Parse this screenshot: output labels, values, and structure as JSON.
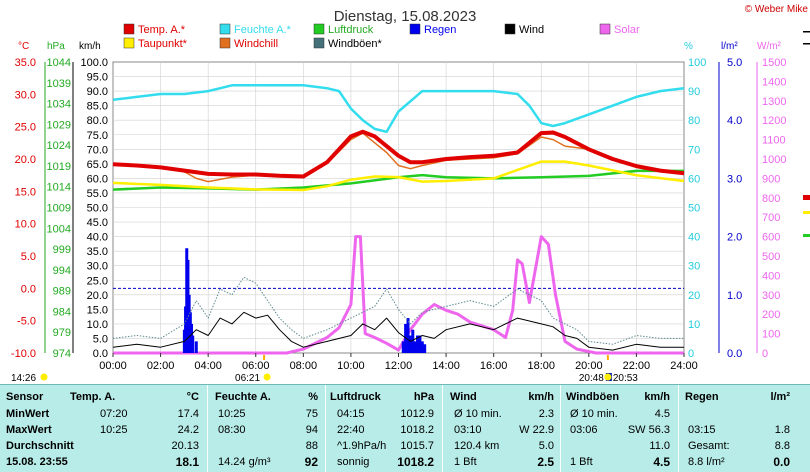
{
  "title": "Dienstag, 15.08.2023",
  "copyright": "© Weber Mike",
  "colors": {
    "temp": "#e00000",
    "dew": "#ffee00",
    "hum": "#33ddee",
    "windchill": "#e07020",
    "pressure": "#22cc22",
    "gust": "#44707a",
    "rain": "#0000ee",
    "wind": "#000000",
    "solar": "#ee66ee",
    "panel": "#b8ece8"
  },
  "axes": {
    "c_unit": "°C",
    "hpa_unit": "hPa",
    "kmh_unit": "km/h",
    "pct_unit": "%",
    "lm2_unit": "l/m²",
    "wm2_unit": "W/m²",
    "c_ticks": [
      "35.0",
      "30.0",
      "25.0",
      "20.0",
      "15.0",
      "10.0",
      "5.0",
      "0.0",
      "-5.0",
      "-10.0"
    ],
    "hpa_ticks": [
      "1044",
      "1039",
      "1034",
      "1029",
      "1024",
      "1019",
      "1014",
      "1009",
      "1004",
      "999",
      "994",
      "989",
      "984",
      "979",
      "974"
    ],
    "kmh_ticks": [
      "100.0",
      "95.0",
      "90.0",
      "85.0",
      "80.0",
      "75.0",
      "70.0",
      "65.0",
      "60.0",
      "55.0",
      "50.0",
      "45.0",
      "40.0",
      "35.0",
      "30.0",
      "25.0",
      "20.0",
      "15.0",
      "10.0",
      "5.0",
      "0.0"
    ],
    "pct_ticks": [
      "100",
      "90",
      "80",
      "70",
      "60",
      "50",
      "40",
      "30",
      "20",
      "10",
      "0"
    ],
    "lm2_ticks": [
      "5.0",
      "4.0",
      "3.0",
      "2.0",
      "1.0",
      "0.0"
    ],
    "wm2_ticks": [
      "1500",
      "1400",
      "1300",
      "1200",
      "1100",
      "1000",
      "900",
      "800",
      "700",
      "600",
      "500",
      "400",
      "300",
      "200",
      "100",
      "0"
    ],
    "x_ticks": [
      "00:00",
      "02:00",
      "04:00",
      "06:00",
      "08:00",
      "10:00",
      "12:00",
      "14:00",
      "16:00",
      "18:00",
      "20:00",
      "22:00",
      "24:00"
    ],
    "sunrise": "06:21",
    "sunset": "20:48",
    "moonrise": "14:26",
    "moonset": "20:53"
  },
  "legend": [
    {
      "label": "Temp. A.*",
      "color": "#e00000",
      "text_color": "#e00000"
    },
    {
      "label": "Feuchte A.*",
      "color": "#33ddee",
      "text_color": "#33ddee"
    },
    {
      "label": "Luftdruck",
      "color": "#22cc22",
      "text_color": "#22aa22"
    },
    {
      "label": "Regen",
      "color": "#0000ee",
      "text_color": "#0000ee"
    },
    {
      "label": "Wind",
      "color": "#000000",
      "text_color": "#000000"
    },
    {
      "label": "Solar",
      "color": "#ee66ee",
      "text_color": "#ee66ee"
    },
    {
      "label": "Taupunkt*",
      "color": "#ffee00",
      "text_color": "#e00000"
    },
    {
      "label": "Windchill",
      "color": "#e07020",
      "text_color": "#e00000"
    },
    {
      "label": "Windböen*",
      "color": "#44707a",
      "text_color": "#000000"
    }
  ],
  "chart_data": {
    "type": "line",
    "x_unit": "hour of day",
    "xlim": [
      0,
      24
    ],
    "series": [
      {
        "name": "Temp. A.*",
        "unit": "°C",
        "x": [
          0,
          1,
          2,
          3,
          4,
          5,
          6,
          7,
          8,
          9,
          9.5,
          10,
          10.5,
          11,
          11.5,
          12,
          12.5,
          13,
          14,
          15,
          16,
          17,
          17.5,
          18,
          18.5,
          19,
          20,
          21,
          22,
          23,
          24
        ],
        "y": [
          19.2,
          19.0,
          18.7,
          18.2,
          17.7,
          17.6,
          17.6,
          17.4,
          17.3,
          19.5,
          21.5,
          23.5,
          24.2,
          23.5,
          22.0,
          20.5,
          19.5,
          19.5,
          20.0,
          20.3,
          20.5,
          21.0,
          22.5,
          24.0,
          24.1,
          23.4,
          21.5,
          20.0,
          18.9,
          18.2,
          17.8
        ]
      },
      {
        "name": "Taupunkt*",
        "unit": "°C",
        "x": [
          0,
          2,
          4,
          6,
          8,
          9,
          10,
          11,
          12,
          13,
          14,
          16,
          18,
          19,
          20,
          22,
          24
        ],
        "y": [
          16.3,
          16.0,
          15.6,
          15.3,
          15.2,
          15.8,
          16.8,
          17.3,
          17.2,
          16.5,
          16.6,
          17.0,
          19.6,
          19.6,
          19.0,
          17.5,
          16.6
        ]
      },
      {
        "name": "Windchill",
        "unit": "°C",
        "x": [
          0,
          2,
          3,
          3.5,
          4,
          5,
          6,
          8,
          9,
          10,
          10.5,
          11,
          11.5,
          12,
          12.5,
          13,
          14,
          16,
          17,
          18,
          18.5,
          19,
          20,
          22,
          24
        ],
        "y": [
          19.2,
          18.7,
          18.0,
          17.0,
          16.5,
          17.2,
          17.5,
          17.3,
          19.3,
          23.0,
          24.0,
          22.5,
          21.0,
          19.0,
          18.5,
          19.0,
          19.8,
          20.2,
          20.8,
          23.4,
          23.0,
          22.0,
          21.5,
          18.9,
          17.8
        ]
      },
      {
        "name": "Feuchte A.*",
        "unit": "%",
        "x": [
          0,
          1,
          2,
          3,
          4,
          5,
          6,
          7,
          8,
          9,
          9.5,
          10,
          10.5,
          11,
          11.5,
          12,
          13,
          14,
          15,
          16,
          17,
          17.5,
          18,
          18.5,
          19,
          20,
          21,
          22,
          23,
          24
        ],
        "y": [
          87,
          88,
          89,
          89,
          90,
          92,
          92,
          92,
          92,
          91,
          90,
          84,
          80,
          77,
          76,
          83,
          90,
          90,
          90,
          90,
          89,
          85,
          79,
          78,
          79,
          82,
          85,
          88,
          90,
          91
        ]
      },
      {
        "name": "Luftdruck",
        "unit": "hPa",
        "x": [
          0,
          2,
          4,
          6,
          8,
          10,
          12,
          13,
          14,
          16,
          18,
          20,
          22,
          24
        ],
        "y": [
          1013.3,
          1013.8,
          1013.6,
          1013.3,
          1013.8,
          1014.8,
          1016.3,
          1016.8,
          1016.3,
          1016.0,
          1016.3,
          1016.6,
          1017.8,
          1017.8
        ]
      },
      {
        "name": "Wind",
        "unit": "km/h",
        "x": [
          0,
          1,
          2,
          3,
          3.5,
          4,
          4.5,
          5,
          5.5,
          6,
          6.5,
          7,
          7.5,
          8,
          9,
          10,
          10.5,
          11,
          11.5,
          12,
          12.5,
          13,
          13.5,
          14,
          15,
          16,
          17,
          18,
          18.5,
          19,
          19.5,
          20,
          21,
          22,
          23,
          24
        ],
        "y": [
          2,
          3,
          2,
          4,
          8,
          6,
          12,
          10,
          14,
          12,
          13,
          8,
          4,
          2,
          4,
          6,
          10,
          8,
          12,
          7,
          4,
          6,
          5,
          8,
          10,
          8,
          12,
          10,
          9,
          6,
          5,
          2,
          1,
          3,
          2,
          2
        ]
      },
      {
        "name": "Windböen*",
        "unit": "km/h",
        "x": [
          0,
          1,
          2,
          3,
          3.5,
          4,
          4.5,
          5,
          5.5,
          6,
          6.5,
          7,
          7.5,
          8,
          9,
          10,
          11,
          11.5,
          12,
          12.5,
          13,
          14,
          15,
          16,
          17,
          17.5,
          18,
          18.5,
          19,
          19.5,
          20,
          21,
          22,
          23,
          24
        ],
        "y": [
          5,
          6,
          5,
          10,
          18,
          12,
          22,
          20,
          26,
          24,
          18,
          12,
          8,
          5,
          8,
          12,
          16,
          22,
          15,
          10,
          14,
          16,
          18,
          16,
          22,
          20,
          18,
          12,
          10,
          8,
          4,
          3,
          6,
          5,
          5
        ]
      },
      {
        "name": "Solar",
        "unit": "W/m²",
        "x": [
          0,
          7.3,
          8,
          9,
          9.5,
          10,
          10.2,
          10.4,
          10.6,
          11,
          11.5,
          12,
          12.5,
          13,
          13.5,
          14,
          14.5,
          15,
          15.5,
          16,
          16.5,
          16.8,
          17,
          17.2,
          17.5,
          18,
          18.3,
          18.6,
          19,
          19.5,
          20.3,
          24
        ],
        "y": [
          0,
          0,
          20,
          80,
          130,
          250,
          600,
          600,
          100,
          80,
          50,
          15,
          120,
          200,
          250,
          220,
          200,
          160,
          140,
          120,
          80,
          220,
          480,
          460,
          260,
          600,
          560,
          300,
          60,
          20,
          0,
          0
        ]
      },
      {
        "name": "Regen",
        "unit": "l/m²",
        "x": [
          3,
          3.05,
          3.1,
          3.15,
          3.2,
          3.25,
          3.3,
          3.35,
          3.5,
          12.2,
          12.3,
          12.4,
          12.5,
          12.6,
          12.7,
          12.8,
          12.9,
          13.0,
          13.1
        ],
        "y": [
          0.4,
          0.8,
          1.8,
          1.6,
          1.0,
          0.7,
          0.5,
          0.3,
          0.2,
          0.2,
          0.5,
          0.6,
          0.3,
          0.4,
          0.2,
          0.3,
          0.3,
          0.2,
          0.15
        ]
      }
    ]
  },
  "stats": {
    "header": [
      "Sensor",
      "Temp. A.",
      "°C",
      "Feuchte A.",
      "%",
      "Luftdruck",
      "hPa",
      "Wind",
      "km/h",
      "Windböen",
      "km/h",
      "Regen",
      "l/m²"
    ],
    "rows": [
      {
        "label": "MinWert",
        "t_time": "07:20",
        "t_val": "17.4",
        "h_time": "10:25",
        "h_val": "75",
        "p_time": "04:15",
        "p_val": "1012.9",
        "w_label": "Ø 10 min.",
        "w_val": "2.3",
        "g_label": "Ø 10 min.",
        "g_val": "4.5",
        "r_time": "",
        "r_val": ""
      },
      {
        "label": "MaxWert",
        "t_time": "10:25",
        "t_val": "24.2",
        "h_time": "08:30",
        "h_val": "94",
        "p_time": "22:40",
        "p_val": "1018.2",
        "w_label": "03:10",
        "w_val": "W 22.9",
        "g_label": "03:06",
        "g_val": "SW 56.3",
        "r_time": "03:15",
        "r_val": "1.8"
      },
      {
        "label": "Durchschnitt",
        "t_time": "",
        "t_val": "20.13",
        "h_time": "",
        "h_val": "88",
        "p_time": "^1.9hPa/h",
        "p_val": "1015.7",
        "w_label": "120.4 km",
        "w_val": "5.0",
        "g_label": "",
        "g_val": "11.0",
        "r_time": "Gesamt:",
        "r_val": "8.8"
      },
      {
        "label": "15.08. 23:55",
        "t_time": "",
        "t_val": "18.1",
        "h_time": "14.24 g/m³",
        "h_val": "92",
        "p_time": "sonnig",
        "p_val": "1018.2",
        "w_label": "1 Bft",
        "w_val": "2.5",
        "g_label": "1 Bft",
        "g_val": "4.5",
        "r_time": "8.8 l/m²",
        "r_val": "0.0"
      }
    ]
  }
}
